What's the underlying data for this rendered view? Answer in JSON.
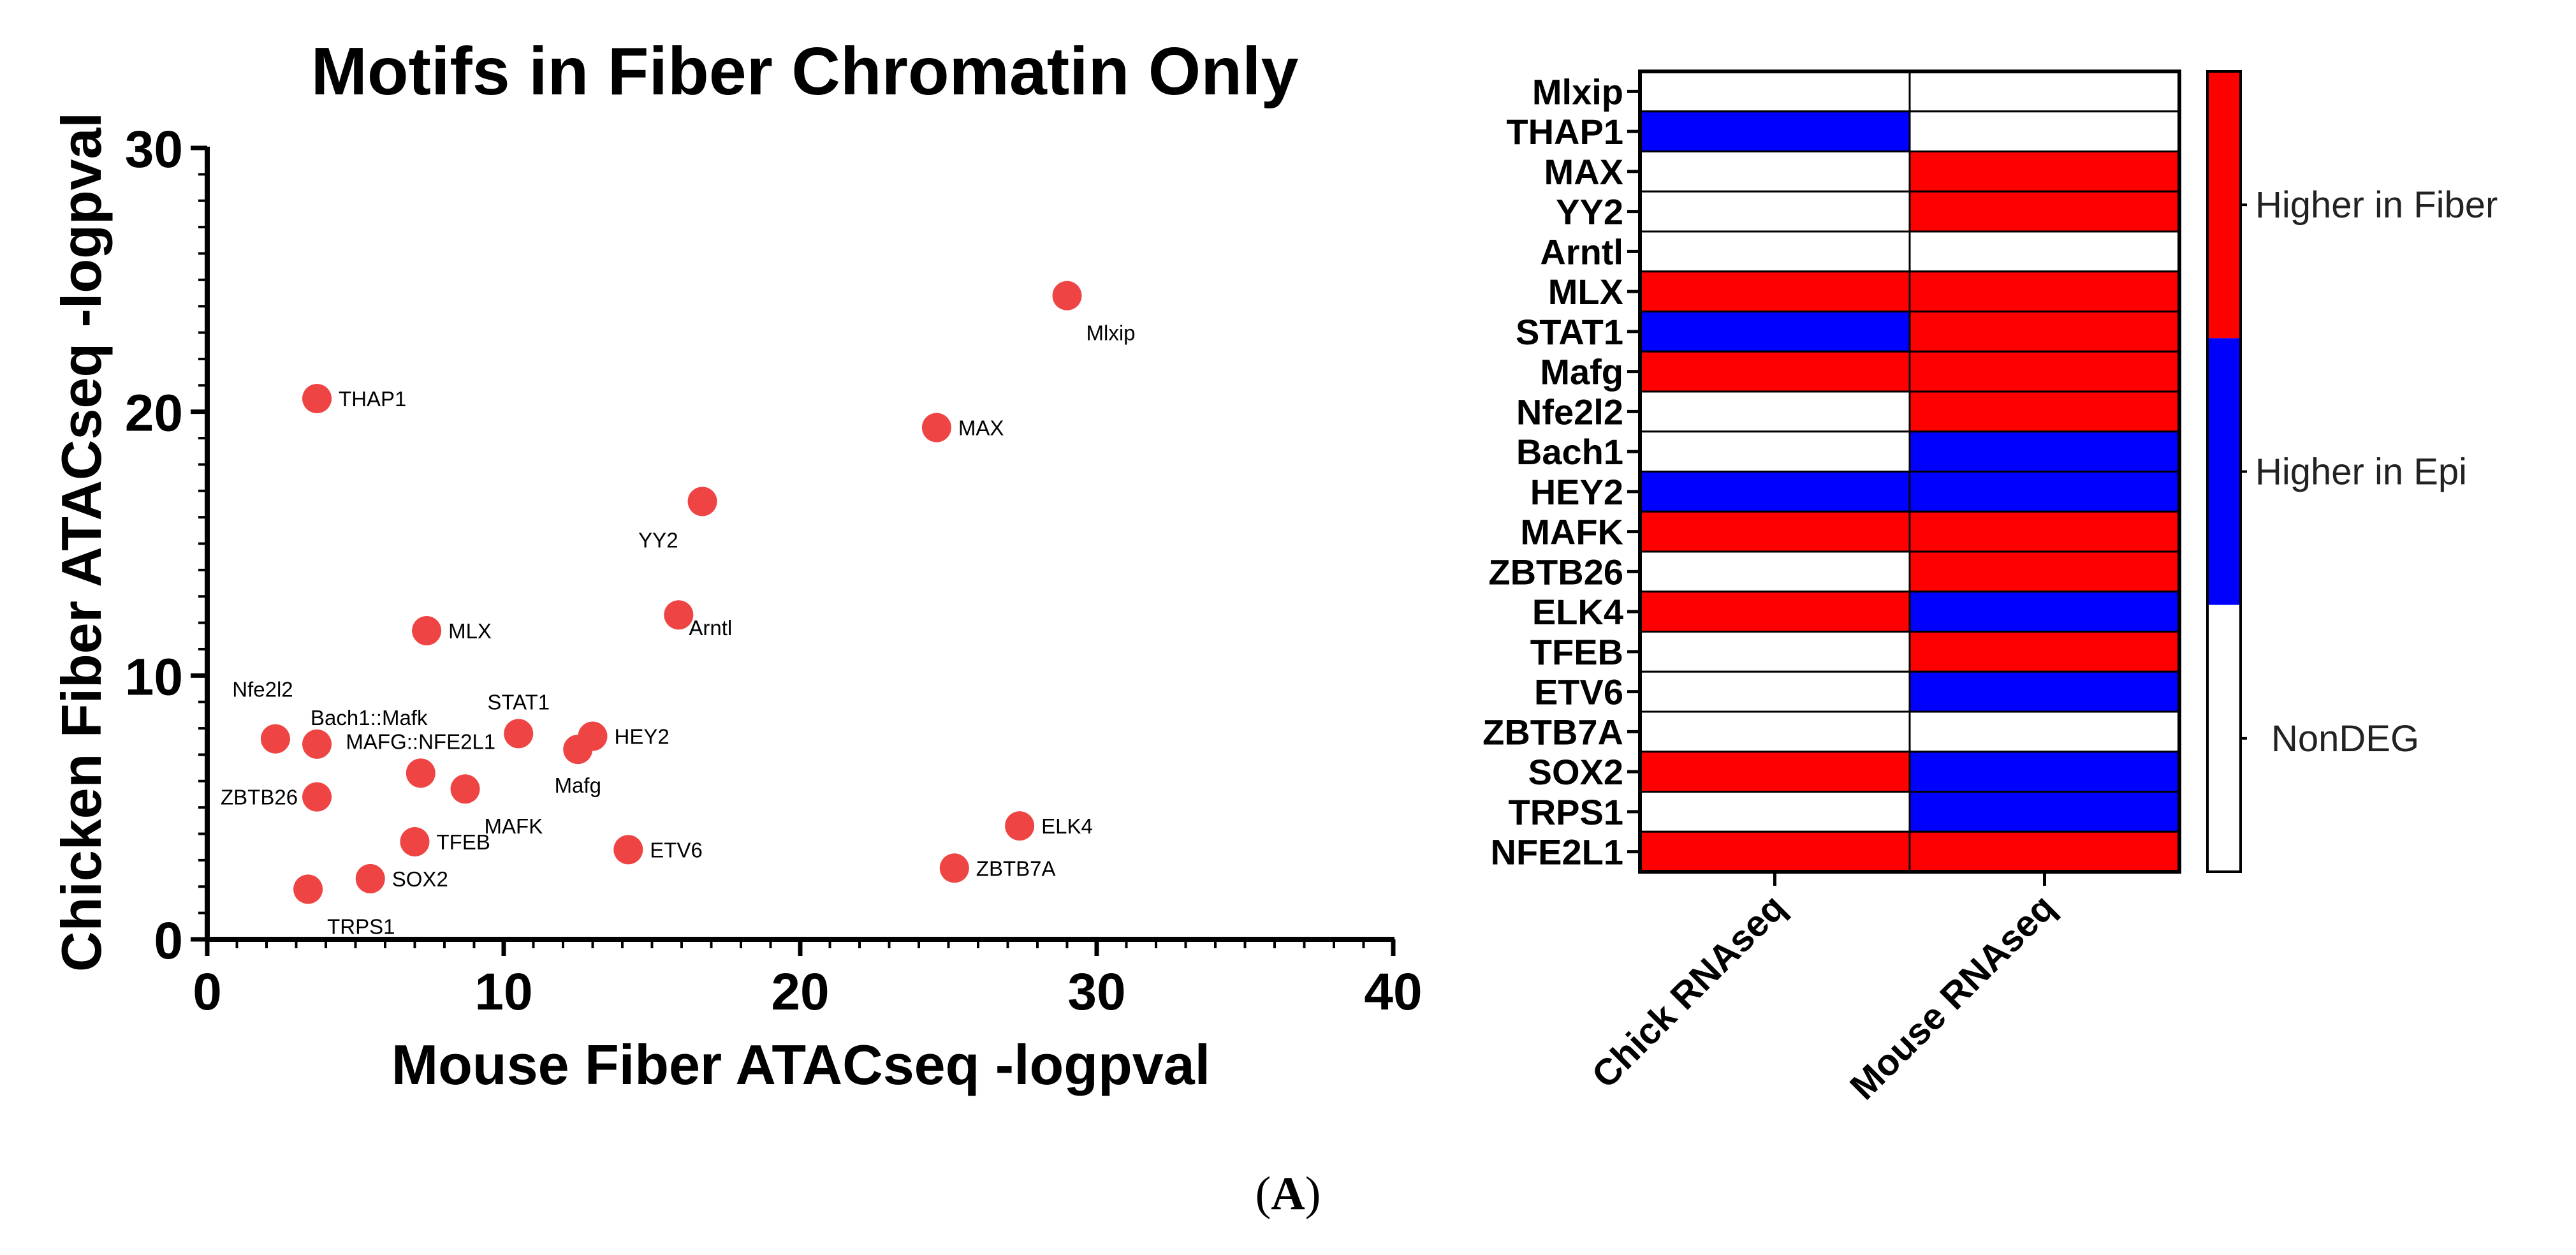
{
  "scatter": {
    "chart_data": {
      "type": "scatter",
      "title": "Motifs in Fiber Chromatin Only",
      "xlabel": "Mouse Fiber ATACseq -logpval",
      "ylabel": "Chicken Fiber ATACseq -logpval",
      "xlim": [
        0,
        40
      ],
      "ylim": [
        0,
        30
      ],
      "xticks": [
        0,
        10,
        20,
        30,
        40
      ],
      "yticks": [
        0,
        10,
        20,
        30
      ],
      "marker_color": "#ef4444",
      "points": [
        {
          "label": "Mlxip",
          "x": 29.0,
          "y": 24.4,
          "anchor": "below-right"
        },
        {
          "label": "THAP1",
          "x": 3.7,
          "y": 20.5,
          "anchor": "right"
        },
        {
          "label": "MAX",
          "x": 24.6,
          "y": 19.4,
          "anchor": "right"
        },
        {
          "label": "YY2",
          "x": 16.7,
          "y": 16.6,
          "anchor": "below-left"
        },
        {
          "label": "MLX",
          "x": 7.4,
          "y": 11.7,
          "anchor": "right"
        },
        {
          "label": "Arntl",
          "x": 15.9,
          "y": 12.3,
          "anchor": "right-low"
        },
        {
          "label": "Nfe2l2",
          "x": 2.3,
          "y": 7.6,
          "anchor": "above-left"
        },
        {
          "label": "Bach1::Mafk",
          "x": 3.7,
          "y": 7.4,
          "anchor": "above-right"
        },
        {
          "label": "STAT1",
          "x": 10.5,
          "y": 7.8,
          "anchor": "above"
        },
        {
          "label": "HEY2",
          "x": 13.0,
          "y": 7.7,
          "anchor": "right"
        },
        {
          "label": "Mafg",
          "x": 12.5,
          "y": 7.2,
          "anchor": "below"
        },
        {
          "label": "MAFG::NFE2L1",
          "x": 7.2,
          "y": 6.3,
          "anchor": "above"
        },
        {
          "label": "MAFK",
          "x": 8.7,
          "y": 5.7,
          "anchor": "below-right"
        },
        {
          "label": "ZBTB26",
          "x": 3.7,
          "y": 5.4,
          "anchor": "left"
        },
        {
          "label": "TFEB",
          "x": 7.0,
          "y": 3.7,
          "anchor": "right"
        },
        {
          "label": "ETV6",
          "x": 14.2,
          "y": 3.4,
          "anchor": "right"
        },
        {
          "label": "ELK4",
          "x": 27.4,
          "y": 4.3,
          "anchor": "right"
        },
        {
          "label": "ZBTB7A",
          "x": 25.2,
          "y": 2.7,
          "anchor": "right"
        },
        {
          "label": "SOX2",
          "x": 5.5,
          "y": 2.3,
          "anchor": "right"
        },
        {
          "label": "TRPS1",
          "x": 3.4,
          "y": 1.9,
          "anchor": "below-right"
        }
      ]
    }
  },
  "heatmap": {
    "chart_data": {
      "type": "heatmap",
      "rows": [
        "Mlxip",
        "THAP1",
        "MAX",
        "YY2",
        "Arntl",
        "MLX",
        "STAT1",
        "Mafg",
        "Nfe2l2",
        "Bach1",
        "HEY2",
        "MAFK",
        "ZBTB26",
        "ELK4",
        "TFEB",
        "ETV6",
        "ZBTB7A",
        "SOX2",
        "TRPS1",
        "NFE2L1"
      ],
      "columns": [
        "Chick RNAseq",
        "Mouse RNAseq"
      ],
      "values": [
        [
          "NonDEG",
          "NonDEG"
        ],
        [
          "Higher in Epi",
          "NonDEG"
        ],
        [
          "NonDEG",
          "Higher in Fiber"
        ],
        [
          "NonDEG",
          "Higher in Fiber"
        ],
        [
          "NonDEG",
          "NonDEG"
        ],
        [
          "Higher in Fiber",
          "Higher in Fiber"
        ],
        [
          "Higher in Epi",
          "Higher in Fiber"
        ],
        [
          "Higher in Fiber",
          "Higher in Fiber"
        ],
        [
          "NonDEG",
          "Higher in Fiber"
        ],
        [
          "NonDEG",
          "Higher in Epi"
        ],
        [
          "Higher in Epi",
          "Higher in Epi"
        ],
        [
          "Higher in Fiber",
          "Higher in Fiber"
        ],
        [
          "NonDEG",
          "Higher in Fiber"
        ],
        [
          "Higher in Fiber",
          "Higher in Epi"
        ],
        [
          "NonDEG",
          "Higher in Fiber"
        ],
        [
          "NonDEG",
          "Higher in Epi"
        ],
        [
          "NonDEG",
          "NonDEG"
        ],
        [
          "Higher in Fiber",
          "Higher in Epi"
        ],
        [
          "NonDEG",
          "Higher in Epi"
        ],
        [
          "Higher in Fiber",
          "Higher in Fiber"
        ]
      ],
      "legend": [
        {
          "label": "Higher in Fiber",
          "color": "#ff0000"
        },
        {
          "label": "Higher in Epi",
          "color": "#0000ff"
        },
        {
          "label": "NonDEG",
          "color": "#ffffff"
        }
      ]
    }
  },
  "panel_label": {
    "open": "(",
    "letter": "A",
    "close": ")"
  }
}
